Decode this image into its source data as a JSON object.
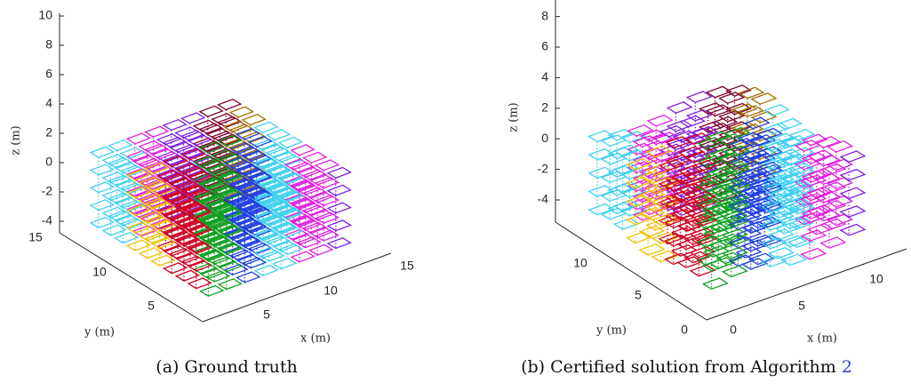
{
  "figures": [
    {
      "zlabel": "z (m)",
      "ylabel": "y (m)",
      "xlabel": "x (m)",
      "zticks": [
        -4,
        -2,
        0,
        2,
        4,
        6,
        8,
        10
      ],
      "yticks": [
        5,
        10,
        15
      ],
      "xticks": [
        5,
        10,
        15
      ],
      "caption": "(a) Ground truth"
    },
    {
      "zlabel": "z (m)",
      "ylabel": "y (m)",
      "xlabel": "x (m)",
      "zticks": [
        -4,
        -2,
        0,
        2,
        4,
        6,
        8
      ],
      "yticks": [
        0,
        5,
        10
      ],
      "xticks": [
        0,
        5,
        10
      ],
      "caption": "(b) Certified solution from Algorithm",
      "caption_ref": "2"
    }
  ]
}
